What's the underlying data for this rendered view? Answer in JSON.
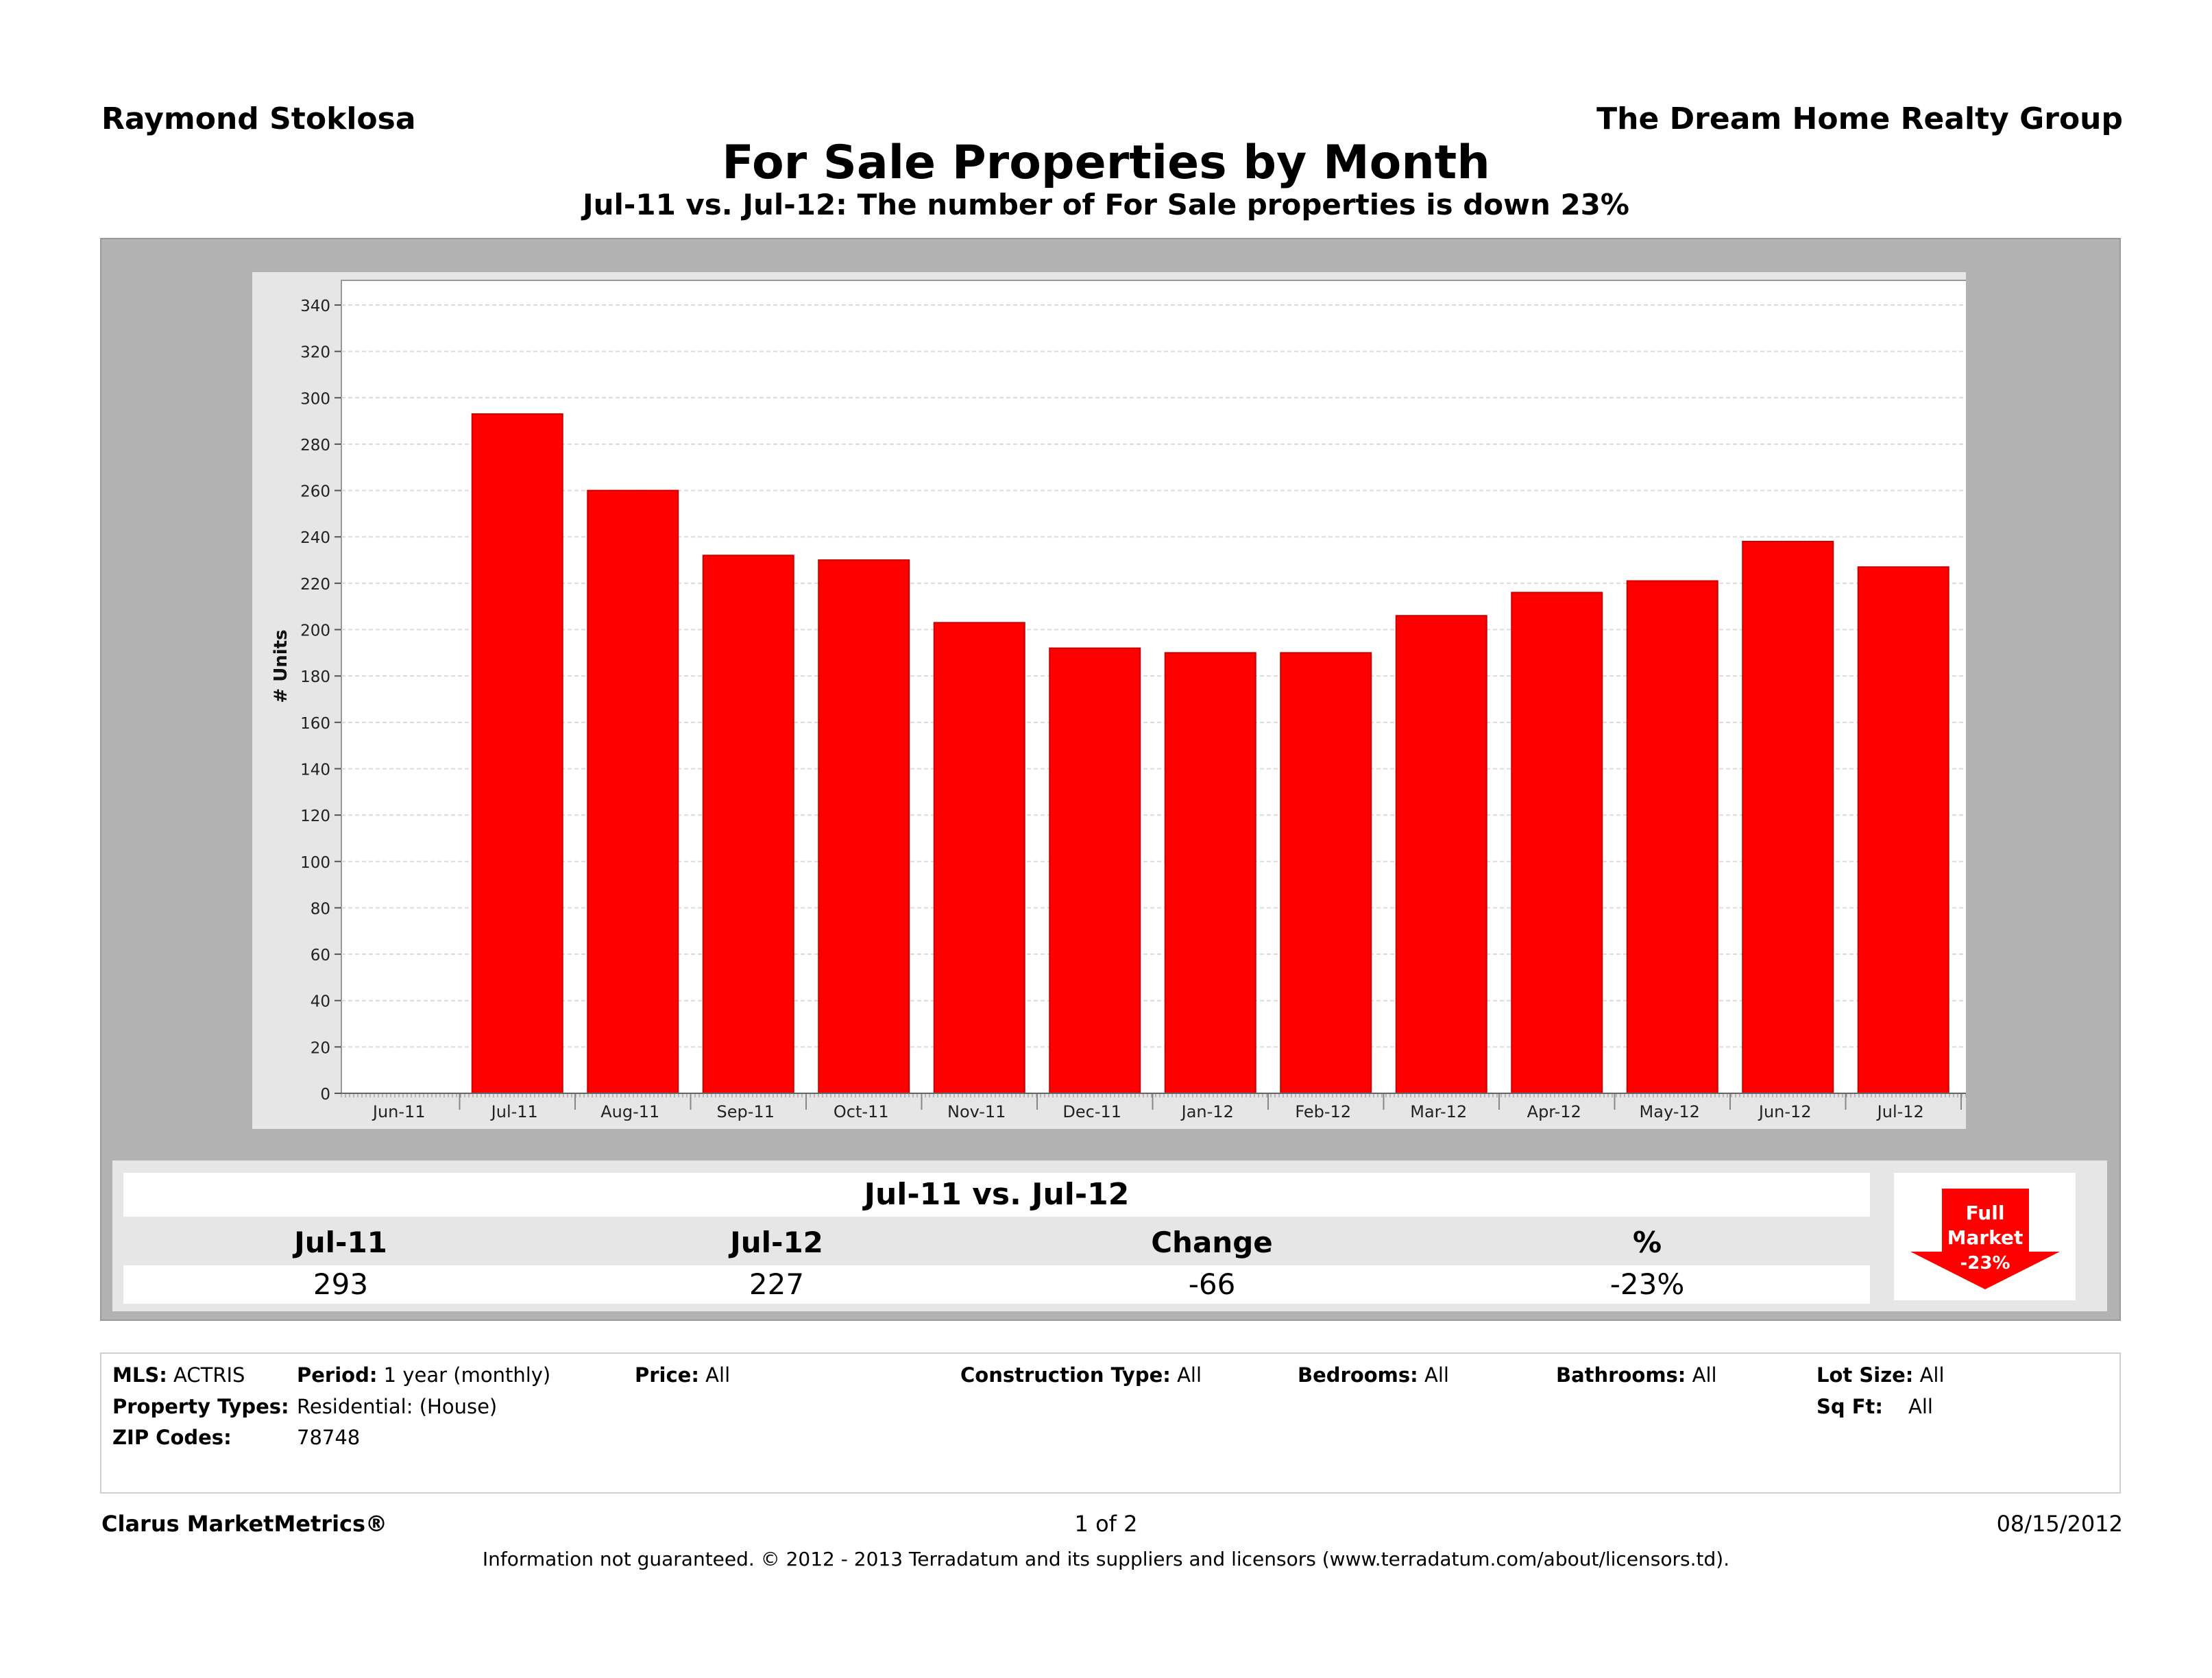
{
  "header": {
    "agent": "Raymond Stoklosa",
    "company": "The Dream Home Realty Group",
    "title": "For Sale Properties by Month",
    "subtitle": "Jul-11 vs. Jul-12: The number of For Sale properties is down 23%"
  },
  "chart_data": {
    "type": "bar",
    "ylabel": "# Units",
    "xlabel": "",
    "ylim": [
      0,
      340
    ],
    "yticks": [
      0,
      20,
      40,
      60,
      80,
      100,
      120,
      140,
      160,
      180,
      200,
      220,
      240,
      260,
      280,
      300,
      320,
      340
    ],
    "axis_categories": [
      "Jun-11",
      "Jul-11",
      "Aug-11",
      "Sep-11",
      "Oct-11",
      "Nov-11",
      "Dec-11",
      "Jan-12",
      "Feb-12",
      "Mar-12",
      "Apr-12",
      "May-12",
      "Jun-12",
      "Jul-12"
    ],
    "categories": [
      "Jul-11",
      "Aug-11",
      "Sep-11",
      "Oct-11",
      "Nov-11",
      "Dec-11",
      "Jan-12",
      "Feb-12",
      "Mar-12",
      "Apr-12",
      "May-12",
      "Jun-12",
      "Jul-12"
    ],
    "values": [
      293,
      260,
      232,
      230,
      203,
      192,
      190,
      190,
      206,
      216,
      221,
      238,
      227
    ],
    "bar_color": "#ff0000",
    "grid": true
  },
  "summary": {
    "title": "Jul-11 vs. Jul-12",
    "headers": [
      "Jul-11",
      "Jul-12",
      "Change",
      "%"
    ],
    "values": [
      "293",
      "227",
      "-66",
      "-23%"
    ]
  },
  "badge": {
    "line1": "Full",
    "line2": "Market",
    "line3": "-23%",
    "color": "#ff0000",
    "icon": "down-arrow-icon"
  },
  "info": {
    "mls_label": "MLS:",
    "mls_value": "ACTRIS",
    "period_label": "Period:",
    "period_value": "1 year (monthly)",
    "price_label": "Price:",
    "price_value": "All",
    "construction_label": "Construction Type:",
    "construction_value": "All",
    "bedrooms_label": "Bedrooms:",
    "bedrooms_value": "All",
    "bathrooms_label": "Bathrooms:",
    "bathrooms_value": "All",
    "lot_label": "Lot Size:",
    "lot_value": "All",
    "property_types_label": "Property Types:",
    "property_types_value": "Residential: (House)",
    "sqft_label": "Sq Ft:",
    "sqft_value": "All",
    "zip_label": "ZIP Codes:",
    "zip_value": "78748"
  },
  "footer": {
    "brand": "Clarus MarketMetrics®",
    "page": "1 of 2",
    "date": "08/15/2012",
    "disclaimer": "Information not guaranteed.  © 2012 - 2013 Terradatum and its suppliers and licensors (www.terradatum.com/about/licensors.td)."
  }
}
